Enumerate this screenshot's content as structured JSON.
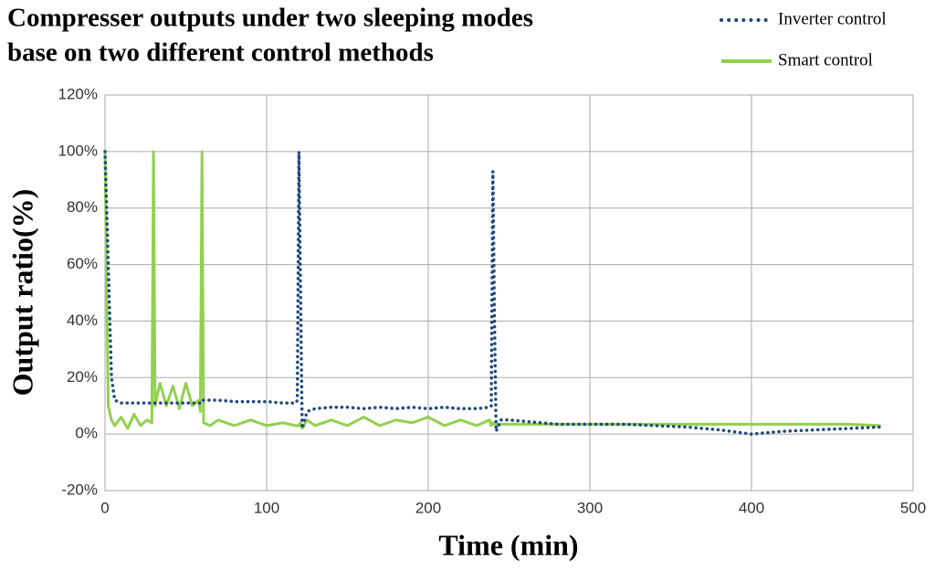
{
  "chart_data": {
    "type": "line",
    "title": [
      "Compresser outputs under two sleeping modes",
      "base on two different control methods"
    ],
    "x_label": "Time (min)",
    "y_label": "Output ratio(%)",
    "x": [
      0,
      2,
      4,
      6,
      10,
      14,
      18,
      22,
      26,
      29,
      30,
      31,
      34,
      38,
      42,
      46,
      50,
      54,
      58,
      59,
      60,
      61,
      65,
      70,
      80,
      90,
      100,
      110,
      118,
      119,
      120,
      121,
      122,
      125,
      130,
      140,
      150,
      160,
      170,
      180,
      190,
      200,
      210,
      220,
      230,
      238,
      239,
      240,
      241,
      242,
      245,
      250,
      260,
      280,
      300,
      320,
      340,
      360,
      380,
      400,
      420,
      440,
      460,
      480
    ],
    "series": [
      {
        "name": "Inverter control",
        "color": "#1f497d",
        "dash": "dotted",
        "values": [
          100,
          60,
          20,
          12,
          11,
          11,
          11,
          11,
          11,
          11,
          11,
          11,
          11,
          11,
          11,
          11,
          11,
          11,
          11,
          11,
          12,
          12,
          12,
          12,
          11.5,
          11.5,
          11.5,
          11,
          11,
          12,
          100,
          50,
          2,
          8,
          9,
          9.5,
          9.5,
          9,
          9.5,
          9,
          9.5,
          9,
          9.5,
          9,
          9,
          9.5,
          10,
          93,
          40,
          1,
          5,
          5,
          4.5,
          3.5,
          3.5,
          3.5,
          3,
          2.5,
          1.5,
          0,
          1,
          1.5,
          2,
          2.5
        ]
      },
      {
        "name": "Smart control",
        "color": "#92d050",
        "dash": "solid",
        "values": [
          100,
          10,
          5,
          3,
          6,
          2,
          7,
          3,
          5,
          4,
          100,
          10,
          18,
          10,
          17,
          9,
          18,
          10,
          12,
          8,
          100,
          4,
          3,
          5,
          3,
          5,
          3,
          4,
          3,
          3,
          3,
          4,
          2,
          5,
          3,
          5,
          3,
          6,
          3,
          5,
          4,
          6,
          3,
          5,
          3,
          5,
          3,
          4,
          3.5,
          3.5,
          3.5,
          3.5,
          3.5,
          3.5,
          3.5,
          3.5,
          3.5,
          3.5,
          3.5,
          3.5,
          3.5,
          3.5,
          3.5,
          3
        ]
      }
    ],
    "xlim": [
      0,
      500
    ],
    "xticks": [
      0,
      100,
      200,
      300,
      400,
      500
    ],
    "ylim": [
      -20,
      120
    ],
    "yticks": [
      {
        "value": -20,
        "label": "-20%"
      },
      {
        "value": 0,
        "label": "0%"
      },
      {
        "value": 20,
        "label": "20%"
      },
      {
        "value": 40,
        "label": "40%"
      },
      {
        "value": 60,
        "label": "60%"
      },
      {
        "value": 80,
        "label": "80%"
      },
      {
        "value": 100,
        "label": "100%"
      },
      {
        "value": 120,
        "label": "120%"
      }
    ],
    "grid": true,
    "legend": "top-right"
  }
}
